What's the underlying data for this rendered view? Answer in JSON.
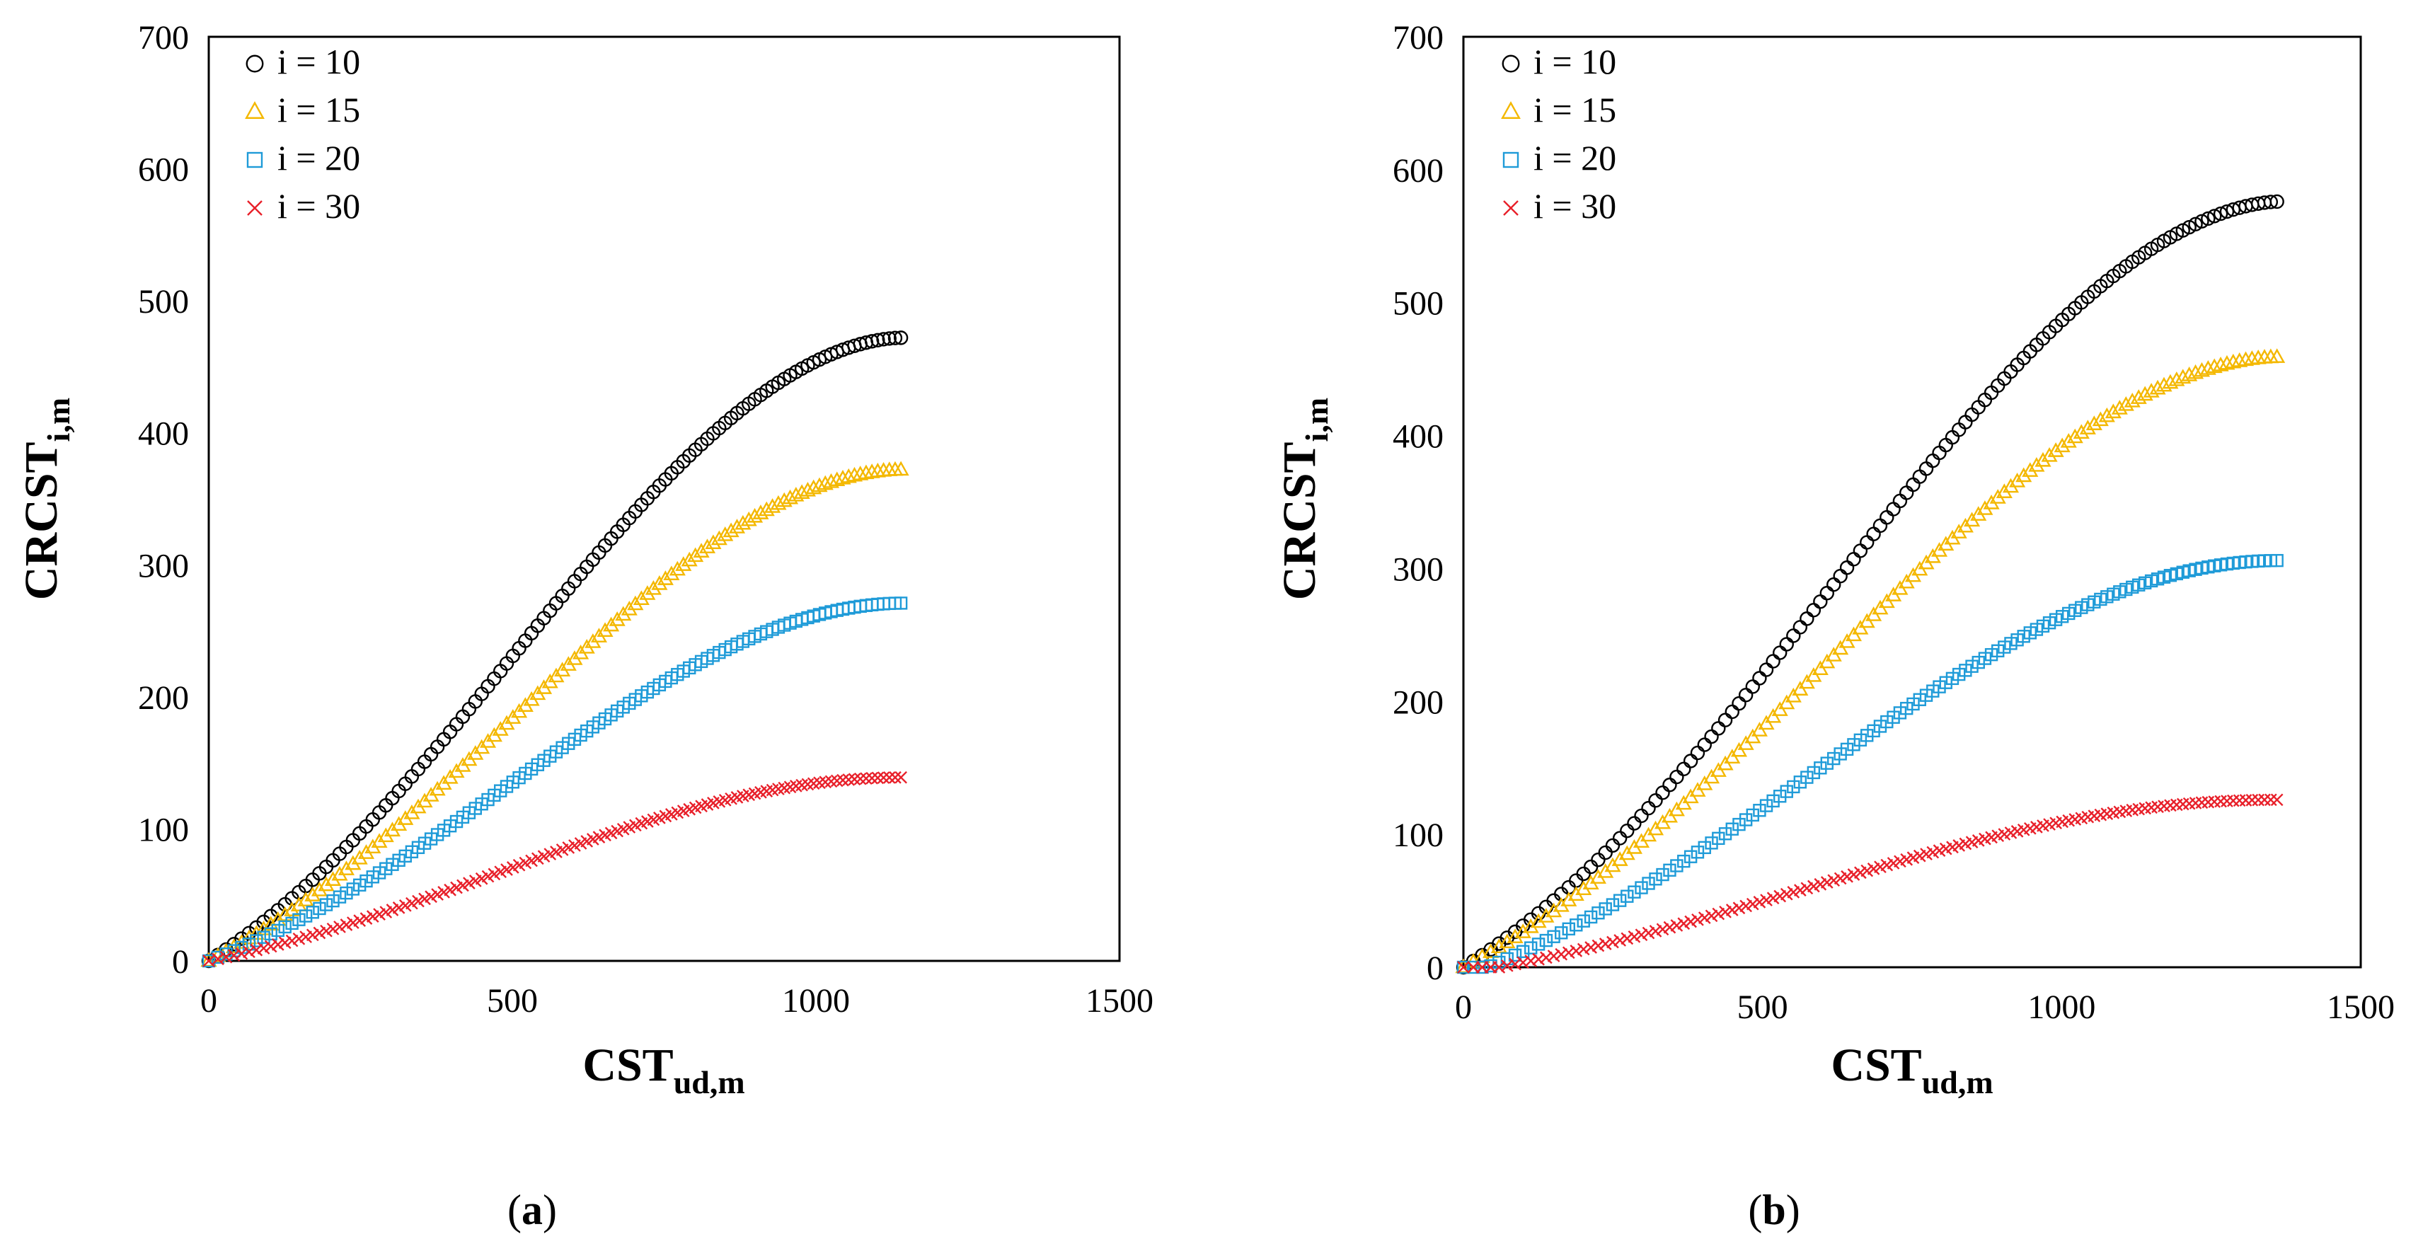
{
  "chart_data": [
    {
      "type": "scatter",
      "panel_label": "a",
      "title": "",
      "xlabel": "CST",
      "xlabel_sub": "ud,m",
      "ylabel": "CRCST",
      "ylabel_sub": "i,m",
      "xlim": [
        0,
        1500
      ],
      "ylim": [
        0,
        700
      ],
      "xticks": [
        "0",
        "500",
        "1000",
        "1500"
      ],
      "yticks": [
        "0",
        "100",
        "200",
        "300",
        "400",
        "500",
        "600",
        "700"
      ],
      "grid": false,
      "legend": "top-left",
      "x_end": 1140,
      "n_points": 110,
      "series": [
        {
          "name": "i = 10",
          "marker": "circle",
          "color": "#000000",
          "max": 472,
          "start": 0,
          "shape": 1.55
        },
        {
          "name": "i = 15",
          "marker": "triangle",
          "color": "#F4B800",
          "max": 372,
          "start": 0,
          "shape": 1.6
        },
        {
          "name": "i = 20",
          "marker": "square",
          "color": "#1F9BD8",
          "max": 271,
          "start": 0,
          "shape": 1.65
        },
        {
          "name": "i = 30",
          "marker": "x",
          "color": "#E8202A",
          "max": 139,
          "start": 0,
          "shape": 1.75
        }
      ]
    },
    {
      "type": "scatter",
      "panel_label": "b",
      "title": "",
      "xlabel": "CST",
      "xlabel_sub": "ud,m",
      "ylabel": "CRCST",
      "ylabel_sub": "i,m",
      "xlim": [
        0,
        1500
      ],
      "ylim": [
        0,
        700
      ],
      "xticks": [
        "0",
        "500",
        "1000",
        "1500"
      ],
      "yticks": [
        "0",
        "100",
        "200",
        "300",
        "400",
        "500",
        "600",
        "700"
      ],
      "grid": false,
      "legend": "top-left",
      "x_end": 1360,
      "n_points": 120,
      "series": [
        {
          "name": "i = 10",
          "marker": "circle",
          "color": "#000000",
          "max": 576,
          "start": 0,
          "shape": 1.45
        },
        {
          "name": "i = 15",
          "marker": "triangle",
          "color": "#F4B800",
          "max": 459,
          "start": 0,
          "shape": 1.55
        },
        {
          "name": "i = 20",
          "marker": "square",
          "color": "#1F9BD8",
          "max": 306,
          "start": 40,
          "shape": 1.8
        },
        {
          "name": "i = 30",
          "marker": "x",
          "color": "#E8202A",
          "max": 126,
          "start": 60,
          "shape": 2.0
        }
      ]
    }
  ]
}
